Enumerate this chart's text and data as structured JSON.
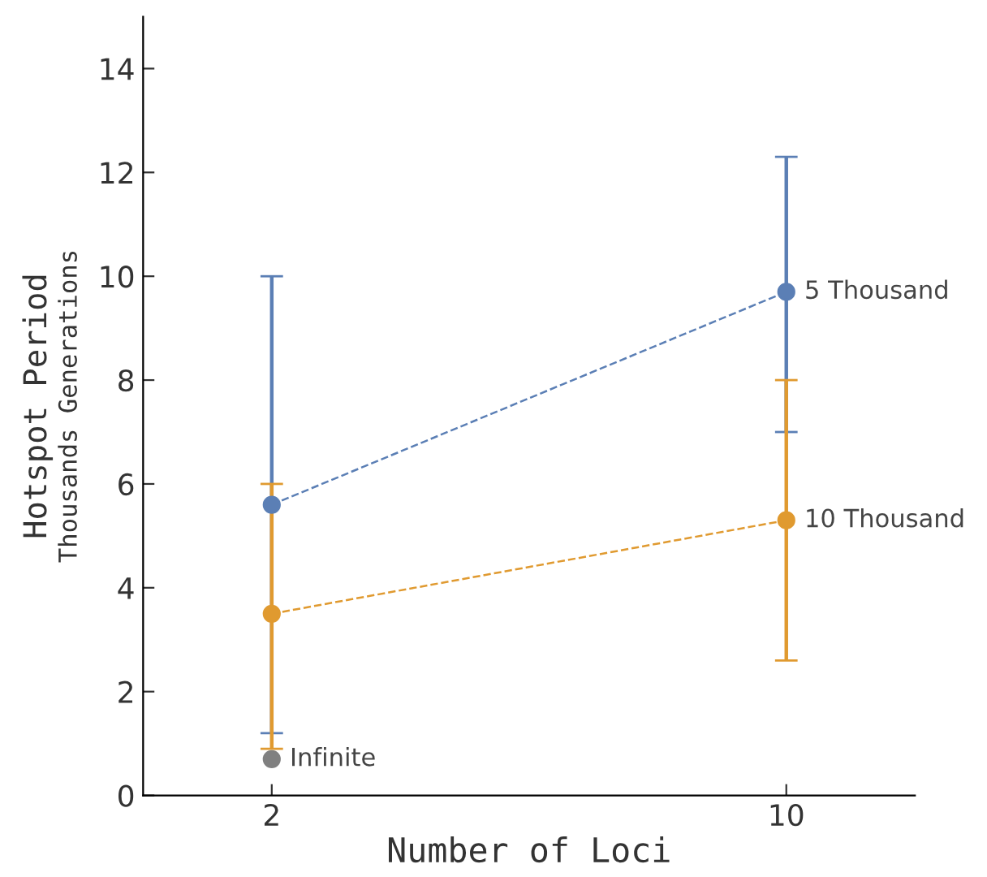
{
  "chart_data": {
    "type": "line",
    "xlabel": "Number of Loci",
    "ylabel": "Hotspot Period",
    "subtitle": "Thousands Generations",
    "x": [
      2,
      10
    ],
    "xlim": [
      0,
      12
    ],
    "xticks": [
      2,
      10
    ],
    "ylim": [
      0,
      15
    ],
    "yticks": [
      0,
      2,
      4,
      6,
      8,
      10,
      12,
      14
    ],
    "grid": false,
    "legend": false,
    "marker": "circle",
    "line_style": "dashed",
    "series": [
      {
        "name": "5 Thousand",
        "color": "#5b7fb5",
        "values": [
          5.6,
          9.7
        ],
        "errors": [
          [
            1.2,
            10.0
          ],
          [
            7.0,
            12.3
          ]
        ]
      },
      {
        "name": "10 Thousand",
        "color": "#e09a30",
        "values": [
          3.5,
          5.3
        ],
        "errors": [
          [
            0.9,
            6.0
          ],
          [
            2.6,
            8.0
          ]
        ]
      },
      {
        "name": "Infinite",
        "type": "scatter",
        "color": "#808080",
        "x": [
          2
        ],
        "values": [
          0.7
        ]
      }
    ]
  }
}
